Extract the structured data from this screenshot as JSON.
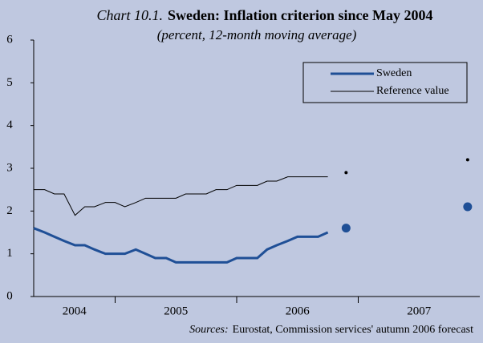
{
  "chart_data": {
    "type": "line",
    "title_prefix": "Chart 10.1.",
    "title": "Sweden: Inflation criterion since May 2004",
    "subtitle": "(percent, 12-month moving average)",
    "source_prefix": "Sources:",
    "source": "Eurostat, Commission services' autumn 2006 forecast",
    "categories": [
      "2004",
      "2005",
      "2006",
      "2007"
    ],
    "xlim": [
      2004.33,
      2008
    ],
    "xticks": [
      2005,
      2006,
      2007
    ],
    "ylim": [
      0,
      6
    ],
    "yticks": [
      0,
      1,
      2,
      3,
      4,
      5,
      6
    ],
    "grid": false,
    "legend": "upper right",
    "x": [
      2004.33,
      2004.42,
      2004.5,
      2004.58,
      2004.67,
      2004.75,
      2004.83,
      2004.92,
      2005,
      2005.08,
      2005.17,
      2005.25,
      2005.33,
      2005.42,
      2005.5,
      2005.58,
      2005.67,
      2005.75,
      2005.83,
      2005.92,
      2006,
      2006.08,
      2006.17,
      2006.25,
      2006.33,
      2006.42,
      2006.5,
      2006.58,
      2006.67,
      2006.75
    ],
    "series": [
      {
        "name": "Sweden",
        "color": "#1f4f96",
        "width": 3,
        "values": [
          1.6,
          1.5,
          1.4,
          1.3,
          1.2,
          1.2,
          1.1,
          1.0,
          1.0,
          1.0,
          1.1,
          1.0,
          0.9,
          0.9,
          0.8,
          0.8,
          0.8,
          0.8,
          0.8,
          0.8,
          0.9,
          0.9,
          0.9,
          1.1,
          1.2,
          1.3,
          1.4,
          1.4,
          1.4,
          1.5
        ],
        "forecast": {
          "x": [
            2006.9,
            2007.9
          ],
          "values": [
            1.6,
            2.1
          ]
        }
      },
      {
        "name": "Reference value",
        "color": "#000000",
        "width": 1,
        "values": [
          2.5,
          2.5,
          2.4,
          2.4,
          1.9,
          2.1,
          2.1,
          2.2,
          2.2,
          2.1,
          2.2,
          2.3,
          2.3,
          2.3,
          2.3,
          2.4,
          2.4,
          2.4,
          2.5,
          2.5,
          2.6,
          2.6,
          2.6,
          2.7,
          2.7,
          2.8,
          2.8,
          2.8,
          2.8,
          2.8
        ],
        "forecast": {
          "x": [
            2006.9,
            2007.9
          ],
          "values": [
            2.9,
            3.2
          ]
        }
      }
    ]
  }
}
